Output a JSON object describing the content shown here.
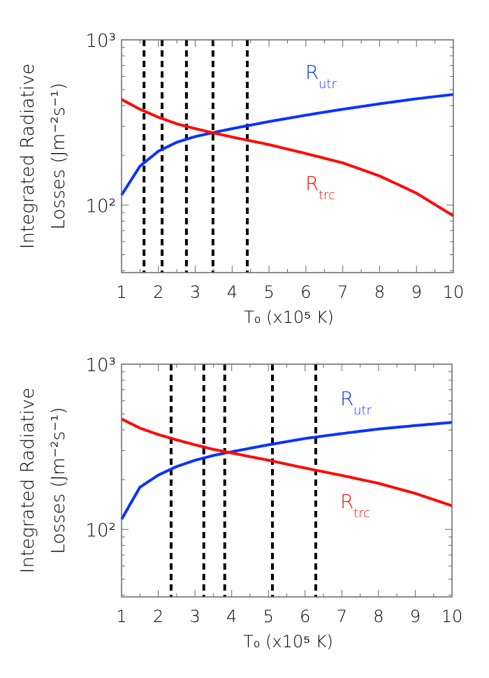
{
  "figure": {
    "panels": [
      {
        "id": "top",
        "ylabel_line1": "Integrated Radiative",
        "ylabel_line2": "Losses (Jm⁻²s⁻¹)",
        "xlabel": "T₀ (x10⁵ K)",
        "y_ticks": [
          "10³",
          "10²"
        ],
        "x_ticks": [
          "1",
          "2",
          "3",
          "4",
          "5",
          "6",
          "7",
          "8",
          "9",
          "10"
        ],
        "label_utr": {
          "main": "R",
          "sub": "utr"
        },
        "label_trc": {
          "main": "R",
          "sub": "trc"
        }
      },
      {
        "id": "bottom",
        "ylabel_line1": "Integrated Radiative",
        "ylabel_line2": "Losses (Jm⁻²s⁻¹)",
        "xlabel": "T₀ (x10⁵ K)",
        "y_ticks": [
          "10³",
          "10²"
        ],
        "x_ticks": [
          "1",
          "2",
          "3",
          "4",
          "5",
          "6",
          "7",
          "8",
          "9",
          "10"
        ],
        "label_utr": {
          "main": "R",
          "sub": "utr"
        },
        "label_trc": {
          "main": "R",
          "sub": "trc"
        }
      }
    ],
    "colors": {
      "utr": "#0a32ff",
      "trc": "#ff0a0a",
      "dashed": "#000000",
      "axis": "#666666"
    }
  },
  "chart_data": [
    {
      "type": "line",
      "title": "",
      "xlabel": "T_0 (x10^5 K)",
      "ylabel": "Integrated Radiative Losses (Jm^-2 s^-1)",
      "xlim": [
        1,
        10
      ],
      "ylim": [
        39,
        1000
      ],
      "yscale": "log",
      "grid": false,
      "x": [
        1,
        1.5,
        2,
        2.5,
        3,
        3.5,
        4,
        5,
        6,
        7,
        8,
        9,
        10
      ],
      "series": [
        {
          "name": "R_utr",
          "color": "#0a32ff",
          "values": [
            115,
            172,
            212,
            240,
            260,
            275,
            290,
            320,
            350,
            380,
            410,
            440,
            467
          ]
        },
        {
          "name": "R_trc",
          "color": "#ff0a0a",
          "values": [
            436,
            380,
            340,
            310,
            290,
            273,
            258,
            232,
            205,
            180,
            150,
            118,
            86
          ]
        }
      ],
      "vertical_dashed_lines_x": [
        1.61,
        2.1,
        2.76,
        3.48,
        4.41
      ],
      "annotations": [
        "R_utr",
        "R_trc"
      ]
    },
    {
      "type": "line",
      "title": "",
      "xlabel": "T_0 (x10^5 K)",
      "ylabel": "Integrated Radiative Losses (Jm^-2 s^-1)",
      "xlim": [
        1,
        10
      ],
      "ylim": [
        39,
        1000
      ],
      "yscale": "log",
      "grid": false,
      "x": [
        1,
        1.5,
        2,
        2.5,
        3,
        3.5,
        4,
        5,
        6,
        7,
        8,
        9,
        10
      ],
      "series": [
        {
          "name": "R_utr",
          "color": "#0a32ff",
          "values": [
            115,
            180,
            213,
            240,
            262,
            280,
            295,
            325,
            355,
            380,
            405,
            425,
            444
          ]
        },
        {
          "name": "R_trc",
          "color": "#ff0a0a",
          "values": [
            466,
            410,
            375,
            348,
            325,
            305,
            290,
            262,
            235,
            212,
            190,
            165,
            139
          ]
        }
      ],
      "vertical_dashed_lines_x": [
        2.35,
        3.24,
        3.81,
        5.11,
        6.29
      ],
      "annotations": [
        "R_utr",
        "R_trc"
      ]
    }
  ]
}
